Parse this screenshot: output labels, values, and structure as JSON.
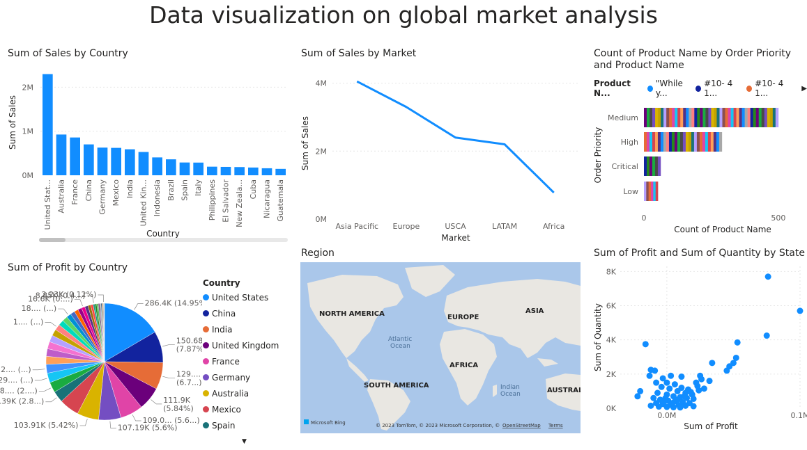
{
  "page_title": "Data visualization on global market analysis",
  "chart_data": [
    {
      "id": "sales_by_country",
      "type": "bar",
      "title": "Sum of Sales by Country",
      "xlabel": "Country",
      "ylabel": "Sum of Sales",
      "categories": [
        "United Stat...",
        "Australia",
        "France",
        "China",
        "Germany",
        "Mexico",
        "India",
        "United Kin...",
        "Indonesia",
        "Brazil",
        "Spain",
        "Italy",
        "Philippines",
        "El Salvador",
        "New Zeala...",
        "Cuba",
        "Nicaragua",
        "Guatemala"
      ],
      "values": [
        2297000,
        925000,
        858000,
        701000,
        628000,
        622000,
        590000,
        529000,
        405000,
        362000,
        290000,
        288000,
        195000,
        190000,
        186000,
        176000,
        159000,
        145000
      ],
      "yticks": [
        {
          "v": 0,
          "label": "0M"
        },
        {
          "v": 1000000,
          "label": "1M"
        },
        {
          "v": 2000000,
          "label": "2M"
        }
      ],
      "ylim": [
        0,
        2400000
      ],
      "color": "#118DFF"
    },
    {
      "id": "sales_by_market",
      "type": "line",
      "title": "Sum of Sales by Market",
      "xlabel": "Market",
      "ylabel": "Sum of Sales",
      "categories": [
        "Asia Pacific",
        "Europe",
        "USCA",
        "LATAM",
        "Africa"
      ],
      "values": [
        4050000,
        3300000,
        2400000,
        2200000,
        780000
      ],
      "yticks": [
        {
          "v": 0,
          "label": "0M"
        },
        {
          "v": 2000000,
          "label": "2M"
        },
        {
          "v": 4000000,
          "label": "4M"
        }
      ],
      "ylim": [
        0,
        4400000
      ],
      "color": "#118DFF"
    },
    {
      "id": "product_by_priority",
      "type": "bar",
      "orientation": "horizontal-stacked",
      "title": "Count of Product Name by Order Priority and Product Name",
      "xlabel": "Count of Product Name",
      "ylabel": "Order Priority",
      "categories": [
        "Medium",
        "High",
        "Critical",
        "Low"
      ],
      "values": [
        500,
        290,
        62,
        52
      ],
      "xticks": [
        {
          "v": 0,
          "label": "0"
        },
        {
          "v": 500,
          "label": "500"
        }
      ],
      "xlim": [
        0,
        560
      ],
      "legend_title": "Product N...",
      "legend_entries": [
        {
          "name": "\"While y...",
          "color": "#118DFF"
        },
        {
          "name": "#10- 4 1...",
          "color": "#12239E"
        },
        {
          "name": "#10- 4 1...",
          "color": "#E66C37"
        }
      ]
    },
    {
      "id": "profit_by_country",
      "type": "pie",
      "title": "Sum of Profit by Country",
      "legend_title": "Country",
      "legend": [
        {
          "name": "United States",
          "color": "#118DFF"
        },
        {
          "name": "China",
          "color": "#12239E"
        },
        {
          "name": "India",
          "color": "#E66C37"
        },
        {
          "name": "United Kingdom",
          "color": "#6B007B"
        },
        {
          "name": "France",
          "color": "#E044A7"
        },
        {
          "name": "Germany",
          "color": "#744EC2"
        },
        {
          "name": "Australia",
          "color": "#D9B300"
        },
        {
          "name": "Mexico",
          "color": "#D64550"
        },
        {
          "name": "Spain",
          "color": "#197278"
        }
      ],
      "slices": [
        {
          "value": 14.95,
          "color": "#118DFF",
          "label": "286.4K (14.95%)"
        },
        {
          "value": 7.87,
          "color": "#12239E",
          "label": "150.68K (7.87%)"
        },
        {
          "value": 6.75,
          "color": "#E66C37",
          "label": "129.... (6.7...)"
        },
        {
          "value": 5.84,
          "color": "#6B007B",
          "label": "111.9K (5.84%)"
        },
        {
          "value": 5.69,
          "color": "#E044A7",
          "label": "109.0... (5.6...)"
        },
        {
          "value": 5.6,
          "color": "#744EC2",
          "label": "107.19K (5.6%)"
        },
        {
          "value": 5.42,
          "color": "#D9B300",
          "label": "103.91K (5.42%)"
        },
        {
          "value": 5.0,
          "color": "#D64550",
          "label": ""
        },
        {
          "value": 2.84,
          "color": "#197278",
          "label": "54.39K (2.8...)"
        },
        {
          "value": 2.6,
          "color": "#1AAB40",
          "label": "38.... (2....)"
        },
        {
          "value": 2.4,
          "color": "#15C6F4",
          "label": "29.... (...)"
        },
        {
          "value": 2.2,
          "color": "#4092FF",
          "label": "2.... (...)"
        },
        {
          "value": 2.0,
          "color": "#FFA058",
          "label": ""
        },
        {
          "value": 1.9,
          "color": "#BE5DC9",
          "label": ""
        },
        {
          "value": 1.8,
          "color": "#F472D0",
          "label": ""
        },
        {
          "value": 1.7,
          "color": "#B5A1FF",
          "label": ""
        },
        {
          "value": 1.6,
          "color": "#C4A200",
          "label": ""
        },
        {
          "value": 1.5,
          "color": "#FF8080",
          "label": "1.... (...)"
        },
        {
          "value": 1.4,
          "color": "#00DBBC",
          "label": ""
        },
        {
          "value": 1.3,
          "color": "#5BD667",
          "label": ""
        },
        {
          "value": 1.2,
          "color": "#0091D5",
          "label": "18.... (...)"
        },
        {
          "value": 1.1,
          "color": "#4668C5",
          "label": ""
        },
        {
          "value": 1.0,
          "color": "#FF6300",
          "label": ""
        },
        {
          "value": 0.95,
          "color": "#99008A",
          "label": ""
        },
        {
          "value": 0.87,
          "color": "#EC008C",
          "label": "16.6K (0....)"
        },
        {
          "value": 0.8,
          "color": "#533285",
          "label": ""
        },
        {
          "value": 0.7,
          "color": "#99700A",
          "label": ""
        },
        {
          "value": 0.6,
          "color": "#FF4141",
          "label": ""
        },
        {
          "value": 0.46,
          "color": "#1F9A85",
          "label": "8.85K (0.4...)"
        },
        {
          "value": 0.45,
          "color": "#25891C",
          "label": ""
        },
        {
          "value": 0.4,
          "color": "#57B956",
          "label": ""
        },
        {
          "value": 0.35,
          "color": "#7A3E7E",
          "label": ""
        },
        {
          "value": 0.3,
          "color": "#A8A8A8",
          "label": ""
        },
        {
          "value": 0.25,
          "color": "#2A5A8C",
          "label": ""
        },
        {
          "value": 0.2,
          "color": "#C48F2A",
          "label": ""
        },
        {
          "value": 0.15,
          "color": "#8C4F4F",
          "label": ""
        },
        {
          "value": 0.12,
          "color": "#4A4A4A",
          "label": "2.23K (0.12%)"
        },
        {
          "value": 0.1,
          "color": "#9BC53D",
          "label": ""
        },
        {
          "value": 0.08,
          "color": "#666666",
          "label": ""
        }
      ]
    },
    {
      "id": "profit_quantity_by_state",
      "type": "scatter",
      "title": "Sum of Profit and Sum of Quantity by State",
      "xlabel": "Sum of Profit",
      "ylabel": "Sum of Quantity",
      "xticks": [
        {
          "v": 0,
          "label": "0.0M"
        },
        {
          "v": 0.1,
          "label": "0.1M"
        }
      ],
      "yticks": [
        {
          "v": 0,
          "label": "0K"
        },
        {
          "v": 2000,
          "label": "2K"
        },
        {
          "v": 4000,
          "label": "4K"
        },
        {
          "v": 6000,
          "label": "6K"
        },
        {
          "v": 8000,
          "label": "8K"
        }
      ],
      "xlim": [
        -0.035,
        0.1
      ],
      "ylim": [
        0,
        8300
      ],
      "color": "#118DFF",
      "points": [
        [
          0.076,
          7700
        ],
        [
          0.1,
          5700
        ],
        [
          0.075,
          4250
        ],
        [
          0.053,
          3850
        ],
        [
          0.052,
          2950
        ],
        [
          0.05,
          2650
        ],
        [
          0.047,
          2450
        ],
        [
          0.045,
          2200
        ],
        [
          0.034,
          2650
        ],
        [
          0.025,
          1900
        ],
        [
          0.026,
          1700
        ],
        [
          0.032,
          1600
        ],
        [
          0.022,
          1500
        ],
        [
          0.023,
          1300
        ],
        [
          0.028,
          1150
        ],
        [
          -0.016,
          3750
        ],
        [
          -0.012,
          2250
        ],
        [
          -0.009,
          2200
        ],
        [
          -0.013,
          1900
        ],
        [
          -0.02,
          1000
        ],
        [
          -0.022,
          700
        ],
        [
          -0.008,
          1500
        ],
        [
          0.003,
          1900
        ],
        [
          0.011,
          1850
        ],
        [
          -0.003,
          1750
        ],
        [
          0.0,
          1500
        ],
        [
          0.006,
          1400
        ],
        [
          0.011,
          1200
        ],
        [
          0.016,
          1100
        ],
        [
          -0.004,
          1250
        ],
        [
          0.002,
          1150
        ],
        [
          0.008,
          1000
        ],
        [
          0.014,
          900
        ],
        [
          0.019,
          800
        ],
        [
          -0.007,
          900
        ],
        [
          -0.01,
          600
        ],
        [
          0.0,
          800
        ],
        [
          0.005,
          700
        ],
        [
          0.01,
          650
        ],
        [
          0.015,
          600
        ],
        [
          0.02,
          550
        ],
        [
          -0.005,
          500
        ],
        [
          0.001,
          450
        ],
        [
          0.006,
          400
        ],
        [
          0.012,
          350
        ],
        [
          0.017,
          300
        ],
        [
          -0.008,
          300
        ],
        [
          -0.003,
          250
        ],
        [
          0.003,
          200
        ],
        [
          0.009,
          180
        ],
        [
          0.014,
          150
        ],
        [
          0.02,
          120
        ],
        [
          -0.012,
          150
        ],
        [
          -0.006,
          100
        ],
        [
          0.0,
          80
        ],
        [
          0.005,
          60
        ],
        [
          0.01,
          50
        ],
        [
          -0.002,
          400
        ],
        [
          0.008,
          500
        ],
        [
          0.004,
          300
        ],
        [
          -0.001,
          600
        ],
        [
          0.013,
          700
        ],
        [
          0.018,
          950
        ],
        [
          0.024,
          1050
        ]
      ]
    }
  ],
  "map": {
    "title": "Region",
    "labels": {
      "north_america": "NORTH AMERICA",
      "europe": "EUROPE",
      "asia": "ASIA",
      "africa": "AFRICA",
      "south_america": "SOUTH AMERICA",
      "australia": "AUSTRAL",
      "atlantic1": "Atlantic",
      "atlantic2": "Ocean",
      "indian1": "Indian",
      "indian2": "Ocean"
    },
    "brand": "Microsoft Bing",
    "copyright_prefix": "© 2023 TomTom, © 2023 Microsoft Corporation, ©",
    "osm": "OpenStreetMap",
    "terms": "Terms"
  },
  "colors": {
    "accent": "#118DFF",
    "stack_palette": [
      "#6B007B",
      "#744EC2",
      "#197278",
      "#E66C37",
      "#D64550",
      "#118DFF",
      "#12239E",
      "#1AAB40",
      "#D9B300",
      "#B5A1FF",
      "#E044A7",
      "#FFA058",
      "#A8A8A8",
      "#25891C",
      "#4A4A4A",
      "#C4A200",
      "#8C4F4F",
      "#15C6F4",
      "#533285",
      "#FF8080"
    ]
  },
  "icons": {
    "legend_next": "play-right-icon",
    "more_down": "caret-down-icon"
  }
}
